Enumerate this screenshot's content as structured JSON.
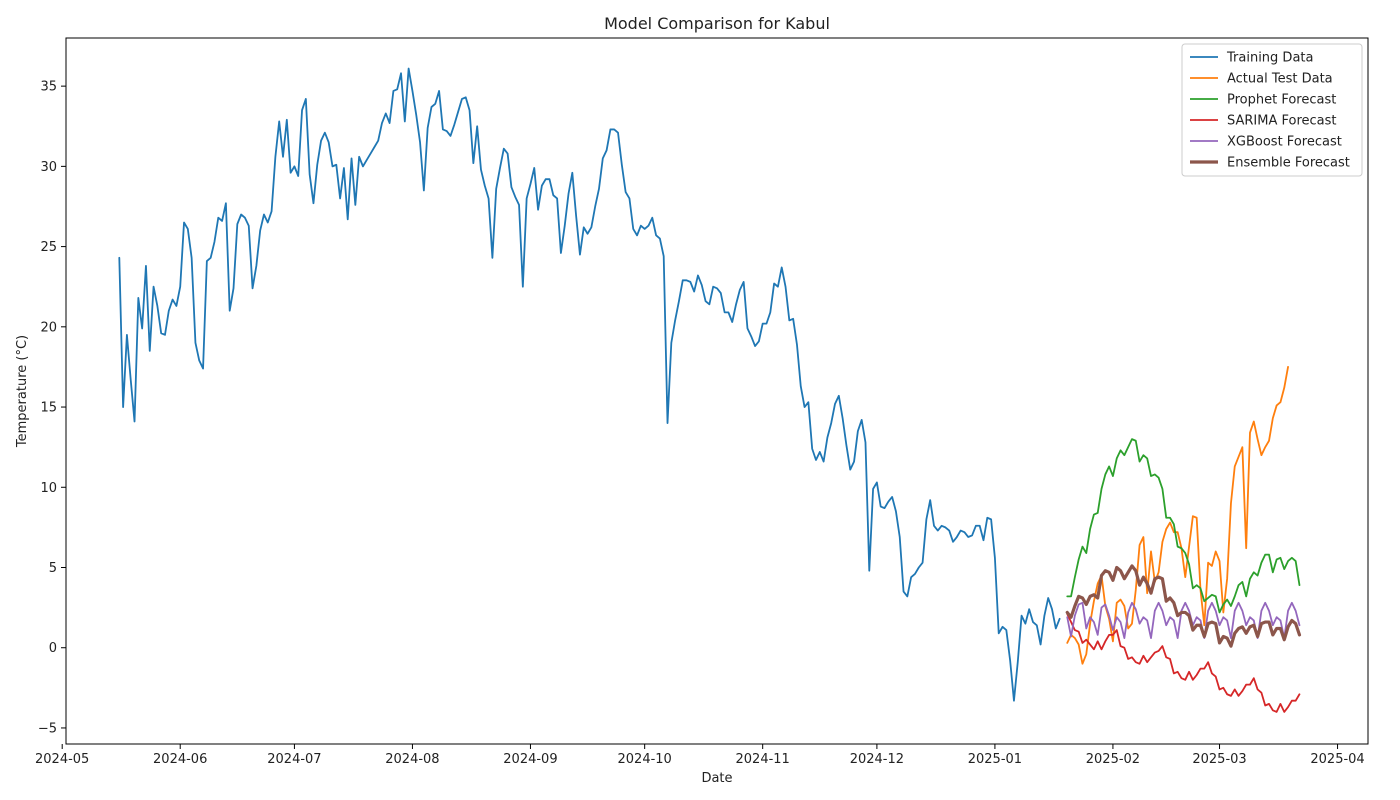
{
  "chart_data": {
    "type": "line",
    "title": "Model Comparison for Kabul",
    "xlabel": "Date",
    "ylabel": "Temperature (°C)",
    "xlim": [
      "2024-05-02",
      "2025-04-09"
    ],
    "ylim": [
      -6,
      38
    ],
    "x_ticks": [
      "2024-05",
      "2024-06",
      "2024-07",
      "2024-08",
      "2024-09",
      "2024-10",
      "2024-11",
      "2024-12",
      "2025-01",
      "2025-02",
      "2025-03",
      "2025-04"
    ],
    "y_ticks": [
      -5,
      0,
      5,
      10,
      15,
      20,
      25,
      30,
      35
    ],
    "grid": false,
    "legend_position": "top-right",
    "series": [
      {
        "name": "Training Data",
        "color": "#1f77b4",
        "width": 1.8,
        "start": "2024-05-16",
        "values": [
          24.3,
          15.0,
          19.5,
          16.7,
          14.1,
          21.8,
          19.9,
          23.8,
          18.5,
          22.5,
          21.3,
          19.6,
          19.5,
          21.0,
          21.7,
          21.3,
          22.5,
          26.5,
          26.1,
          24.3,
          19.0,
          17.9,
          17.4,
          24.1,
          24.3,
          25.3,
          26.8,
          26.6,
          27.7,
          21.0,
          22.4,
          26.4,
          27.0,
          26.8,
          26.3,
          22.4,
          23.8,
          26.0,
          27.0,
          26.5,
          27.2,
          30.6,
          32.8,
          30.6,
          32.9,
          29.6,
          30.0,
          29.4,
          33.5,
          34.2,
          29.5,
          27.7,
          30.1,
          31.6,
          32.1,
          31.5,
          30.0,
          30.1,
          28.0,
          29.9,
          26.7,
          30.5,
          27.6,
          30.6,
          30.0,
          30.4,
          30.8,
          31.2,
          31.6,
          32.7,
          33.3,
          32.7,
          34.7,
          34.8,
          35.8,
          32.8,
          36.1,
          34.7,
          33.2,
          31.5,
          28.5,
          32.4,
          33.7,
          33.9,
          34.7,
          32.3,
          32.2,
          31.9,
          32.6,
          33.4,
          34.2,
          34.3,
          33.5,
          30.2,
          32.5,
          29.8,
          28.8,
          28.0,
          24.3,
          28.6,
          29.9,
          31.1,
          30.8,
          28.7,
          28.1,
          27.6,
          22.5,
          28.0,
          28.9,
          29.9,
          27.3,
          28.8,
          29.2,
          29.2,
          28.2,
          28.0,
          24.6,
          26.3,
          28.3,
          29.6,
          26.9,
          24.5,
          26.2,
          25.8,
          26.2,
          27.5,
          28.6,
          30.5,
          31.0,
          32.3,
          32.3,
          32.1,
          30.1,
          28.4,
          28.0,
          26.1,
          25.7,
          26.3,
          26.1,
          26.3,
          26.8,
          25.7,
          25.5,
          24.4,
          14.0,
          19.0,
          20.4,
          21.6,
          22.9,
          22.9,
          22.8,
          22.2,
          23.2,
          22.6,
          21.6,
          21.4,
          22.5,
          22.4,
          22.1,
          20.9,
          20.9,
          20.3,
          21.4,
          22.3,
          22.8,
          19.9,
          19.4,
          18.8,
          19.1,
          20.2,
          20.2,
          20.9,
          22.7,
          22.5,
          23.7,
          22.5,
          20.4,
          20.5,
          18.9,
          16.3,
          15.0,
          15.3,
          12.4,
          11.7,
          12.2,
          11.6,
          13.1,
          14.0,
          15.2,
          15.7,
          14.3,
          12.6,
          11.1,
          11.6,
          13.5,
          14.2,
          12.8,
          4.8,
          9.9,
          10.3,
          8.8,
          8.7,
          9.1,
          9.4,
          8.5,
          6.9,
          3.5,
          3.2,
          4.4,
          4.6,
          5.0,
          5.3,
          8.0,
          9.2,
          7.6,
          7.3,
          7.6,
          7.5,
          7.3,
          6.6,
          6.9,
          7.3,
          7.2,
          6.9,
          7.0,
          7.6,
          7.6,
          6.7,
          8.1,
          8.0,
          5.6,
          0.9,
          1.3,
          1.1,
          -0.8,
          -3.3,
          -0.9,
          2.0,
          1.5,
          2.4,
          1.6,
          1.4,
          0.2,
          2.0,
          3.1,
          2.4,
          1.2,
          1.8
        ]
      },
      {
        "name": "Actual Test Data",
        "color": "#ff7f0e",
        "width": 1.8,
        "start": "2025-01-20",
        "values": [
          0.3,
          0.8,
          0.6,
          0.2,
          -1.0,
          -0.4,
          1.5,
          2.9,
          4.0,
          4.5,
          2.6,
          1.8,
          0.4,
          2.8,
          3.0,
          2.6,
          1.2,
          1.5,
          3.6,
          6.4,
          6.9,
          3.4,
          6.0,
          4.1,
          4.7,
          6.6,
          7.4,
          7.8,
          7.2,
          7.2,
          6.2,
          4.4,
          6.3,
          8.2,
          8.1,
          3.6,
          1.4,
          5.3,
          5.1,
          6.0,
          5.4,
          2.2,
          4.3,
          9.0,
          11.3,
          11.9,
          12.5,
          6.2,
          13.4,
          14.1,
          13.0,
          12.0,
          12.5,
          12.9,
          14.3,
          15.1,
          15.3,
          16.2,
          17.5
        ]
      },
      {
        "name": "Prophet Forecast",
        "color": "#2ca02c",
        "width": 1.8,
        "start": "2025-01-20",
        "values": [
          3.2,
          3.2,
          4.4,
          5.5,
          6.3,
          5.9,
          7.4,
          8.3,
          8.4,
          9.9,
          10.8,
          11.3,
          10.7,
          11.8,
          12.3,
          12.0,
          12.5,
          13.0,
          12.9,
          11.6,
          12.0,
          11.8,
          10.7,
          10.8,
          10.6,
          9.9,
          8.1,
          8.1,
          7.7,
          6.3,
          6.2,
          5.9,
          5.2,
          3.7,
          3.9,
          3.7,
          2.9,
          3.1,
          3.3,
          3.2,
          2.2,
          2.7,
          3.0,
          2.6,
          3.2,
          3.9,
          4.1,
          3.2,
          4.3,
          4.7,
          4.5,
          5.3,
          5.8,
          5.8,
          4.7,
          5.5,
          5.6,
          4.9,
          5.4,
          5.6,
          5.4,
          3.9
        ]
      },
      {
        "name": "SARIMA Forecast",
        "color": "#d62728",
        "width": 1.8,
        "start": "2025-01-20",
        "values": [
          2.1,
          1.6,
          1.1,
          1.0,
          0.3,
          0.5,
          0.2,
          -0.1,
          0.4,
          -0.1,
          0.4,
          0.8,
          0.8,
          1.1,
          0.1,
          0.0,
          -0.7,
          -0.6,
          -0.9,
          -1.0,
          -0.5,
          -0.9,
          -0.6,
          -0.3,
          -0.2,
          0.1,
          -0.6,
          -0.7,
          -1.6,
          -1.5,
          -1.9,
          -2.0,
          -1.5,
          -2.0,
          -1.7,
          -1.3,
          -1.3,
          -0.9,
          -1.6,
          -1.8,
          -2.6,
          -2.5,
          -2.9,
          -3.0,
          -2.6,
          -3.0,
          -2.7,
          -2.3,
          -2.3,
          -1.9,
          -2.6,
          -2.8,
          -3.6,
          -3.5,
          -3.9,
          -4.0,
          -3.5,
          -4.0,
          -3.7,
          -3.3,
          -3.3,
          -2.9
        ]
      },
      {
        "name": "XGBoost Forecast",
        "color": "#9467bd",
        "width": 1.8,
        "start": "2025-01-20",
        "values": [
          1.9,
          0.7,
          2.0,
          2.7,
          2.8,
          1.2,
          1.9,
          1.6,
          0.8,
          2.5,
          2.7,
          2.0,
          1.1,
          1.9,
          1.6,
          0.6,
          2.2,
          2.8,
          2.4,
          1.5,
          1.9,
          1.7,
          0.6,
          2.3,
          2.8,
          2.3,
          1.4,
          1.9,
          1.7,
          0.6,
          2.3,
          2.8,
          2.3,
          1.4,
          1.9,
          1.7,
          0.6,
          2.3,
          2.8,
          2.3,
          1.4,
          1.9,
          1.7,
          0.6,
          2.3,
          2.8,
          2.3,
          1.4,
          1.9,
          1.7,
          0.6,
          2.3,
          2.8,
          2.3,
          1.4,
          1.9,
          1.7,
          0.6,
          2.3,
          2.8,
          2.3,
          1.4
        ]
      },
      {
        "name": "Ensemble Forecast",
        "color": "#8c564b",
        "width": 3.2,
        "start": "2025-01-20",
        "values": [
          2.2,
          1.9,
          2.6,
          3.2,
          3.1,
          2.7,
          3.2,
          3.3,
          3.1,
          4.5,
          4.8,
          4.7,
          4.2,
          5.0,
          4.8,
          4.3,
          4.7,
          5.1,
          4.8,
          3.9,
          4.4,
          4.0,
          3.4,
          4.3,
          4.4,
          4.3,
          2.9,
          3.1,
          2.8,
          2.0,
          2.2,
          2.2,
          2.0,
          1.1,
          1.4,
          1.4,
          0.7,
          1.5,
          1.6,
          1.5,
          0.3,
          0.7,
          0.6,
          0.1,
          0.9,
          1.2,
          1.3,
          0.9,
          1.3,
          1.4,
          0.7,
          1.5,
          1.6,
          1.6,
          0.8,
          1.2,
          1.2,
          0.5,
          1.3,
          1.7,
          1.5,
          0.8
        ]
      }
    ]
  }
}
